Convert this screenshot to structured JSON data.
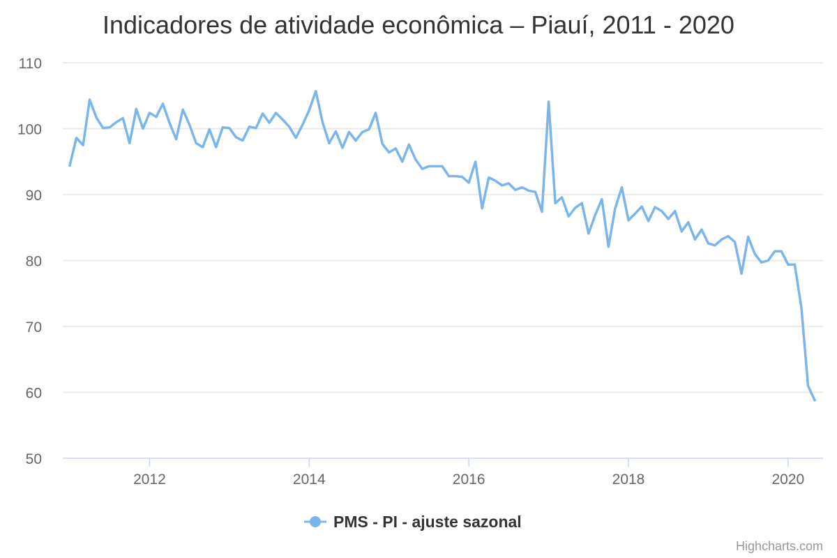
{
  "chart_data": {
    "type": "line",
    "title": "Indicadores de atividade econômica – Piauí, 2011 - 2020",
    "xlabel": "",
    "ylabel": "",
    "xlim": [
      "2011-01",
      "2020-05"
    ],
    "ylim": [
      50,
      110
    ],
    "yticks": [
      50,
      60,
      70,
      80,
      90,
      100,
      110
    ],
    "xticks": [
      "2012",
      "2014",
      "2016",
      "2018",
      "2020"
    ],
    "grid": "horizontal",
    "legend_position": "bottom-center",
    "series": [
      {
        "name": "PMS - PI - ajuste sazonal",
        "color": "#7cb5ec",
        "data": [
          [
            "2011-01",
            94.4
          ],
          [
            "2011-02",
            98.6
          ],
          [
            "2011-03",
            97.5
          ],
          [
            "2011-04",
            104.4
          ],
          [
            "2011-05",
            101.7
          ],
          [
            "2011-06",
            100.1
          ],
          [
            "2011-07",
            100.2
          ],
          [
            "2011-08",
            101.0
          ],
          [
            "2011-09",
            101.6
          ],
          [
            "2011-10",
            97.8
          ],
          [
            "2011-11",
            103.0
          ],
          [
            "2011-12",
            100.0
          ],
          [
            "2012-01",
            102.4
          ],
          [
            "2012-02",
            101.8
          ],
          [
            "2012-03",
            103.8
          ],
          [
            "2012-04",
            100.9
          ],
          [
            "2012-05",
            98.4
          ],
          [
            "2012-06",
            102.9
          ],
          [
            "2012-07",
            100.6
          ],
          [
            "2012-08",
            97.8
          ],
          [
            "2012-09",
            97.2
          ],
          [
            "2012-10",
            99.9
          ],
          [
            "2012-11",
            97.2
          ],
          [
            "2012-12",
            100.2
          ],
          [
            "2013-01",
            100.1
          ],
          [
            "2013-02",
            98.7
          ],
          [
            "2013-03",
            98.2
          ],
          [
            "2013-04",
            100.3
          ],
          [
            "2013-05",
            100.1
          ],
          [
            "2013-06",
            102.3
          ],
          [
            "2013-07",
            100.9
          ],
          [
            "2013-08",
            102.4
          ],
          [
            "2013-09",
            101.4
          ],
          [
            "2013-10",
            100.3
          ],
          [
            "2013-11",
            98.6
          ],
          [
            "2013-12",
            100.6
          ],
          [
            "2014-01",
            102.8
          ],
          [
            "2014-02",
            105.7
          ],
          [
            "2014-03",
            101.0
          ],
          [
            "2014-04",
            97.8
          ],
          [
            "2014-05",
            99.6
          ],
          [
            "2014-06",
            97.1
          ],
          [
            "2014-07",
            99.5
          ],
          [
            "2014-08",
            98.2
          ],
          [
            "2014-09",
            99.5
          ],
          [
            "2014-10",
            99.9
          ],
          [
            "2014-11",
            102.4
          ],
          [
            "2014-12",
            97.7
          ],
          [
            "2015-01",
            96.4
          ],
          [
            "2015-02",
            97.0
          ],
          [
            "2015-03",
            95.0
          ],
          [
            "2015-04",
            97.6
          ],
          [
            "2015-05",
            95.3
          ],
          [
            "2015-06",
            93.9
          ],
          [
            "2015-07",
            94.3
          ],
          [
            "2015-08",
            94.3
          ],
          [
            "2015-09",
            94.3
          ],
          [
            "2015-10",
            92.8
          ],
          [
            "2015-11",
            92.8
          ],
          [
            "2015-12",
            92.7
          ],
          [
            "2016-01",
            91.8
          ],
          [
            "2016-02",
            95.0
          ],
          [
            "2016-03",
            87.9
          ],
          [
            "2016-04",
            92.6
          ],
          [
            "2016-05",
            92.1
          ],
          [
            "2016-06",
            91.4
          ],
          [
            "2016-07",
            91.7
          ],
          [
            "2016-08",
            90.7
          ],
          [
            "2016-09",
            91.1
          ],
          [
            "2016-10",
            90.6
          ],
          [
            "2016-11",
            90.4
          ],
          [
            "2016-12",
            87.4
          ],
          [
            "2017-01",
            104.1
          ],
          [
            "2017-02",
            88.7
          ],
          [
            "2017-03",
            89.6
          ],
          [
            "2017-04",
            86.7
          ],
          [
            "2017-05",
            88.0
          ],
          [
            "2017-06",
            88.7
          ],
          [
            "2017-07",
            84.1
          ],
          [
            "2017-08",
            86.9
          ],
          [
            "2017-09",
            89.3
          ],
          [
            "2017-10",
            82.1
          ],
          [
            "2017-11",
            87.9
          ],
          [
            "2017-12",
            91.1
          ],
          [
            "2018-01",
            86.1
          ],
          [
            "2018-02",
            87.1
          ],
          [
            "2018-03",
            88.2
          ],
          [
            "2018-04",
            86.0
          ],
          [
            "2018-05",
            88.1
          ],
          [
            "2018-06",
            87.5
          ],
          [
            "2018-07",
            86.3
          ],
          [
            "2018-08",
            87.5
          ],
          [
            "2018-09",
            84.4
          ],
          [
            "2018-10",
            85.8
          ],
          [
            "2018-11",
            83.2
          ],
          [
            "2018-12",
            84.7
          ],
          [
            "2019-01",
            82.6
          ],
          [
            "2019-02",
            82.3
          ],
          [
            "2019-03",
            83.2
          ],
          [
            "2019-04",
            83.7
          ],
          [
            "2019-05",
            82.8
          ],
          [
            "2019-06",
            78.0
          ],
          [
            "2019-07",
            83.6
          ],
          [
            "2019-08",
            81.0
          ],
          [
            "2019-09",
            79.7
          ],
          [
            "2019-10",
            80.0
          ],
          [
            "2019-11",
            81.4
          ],
          [
            "2019-12",
            81.4
          ],
          [
            "2020-01",
            79.4
          ],
          [
            "2020-02",
            79.4
          ],
          [
            "2020-03",
            72.9
          ],
          [
            "2020-04",
            61.0
          ],
          [
            "2020-05",
            58.8
          ]
        ]
      }
    ]
  },
  "credit": "Highcharts.com"
}
